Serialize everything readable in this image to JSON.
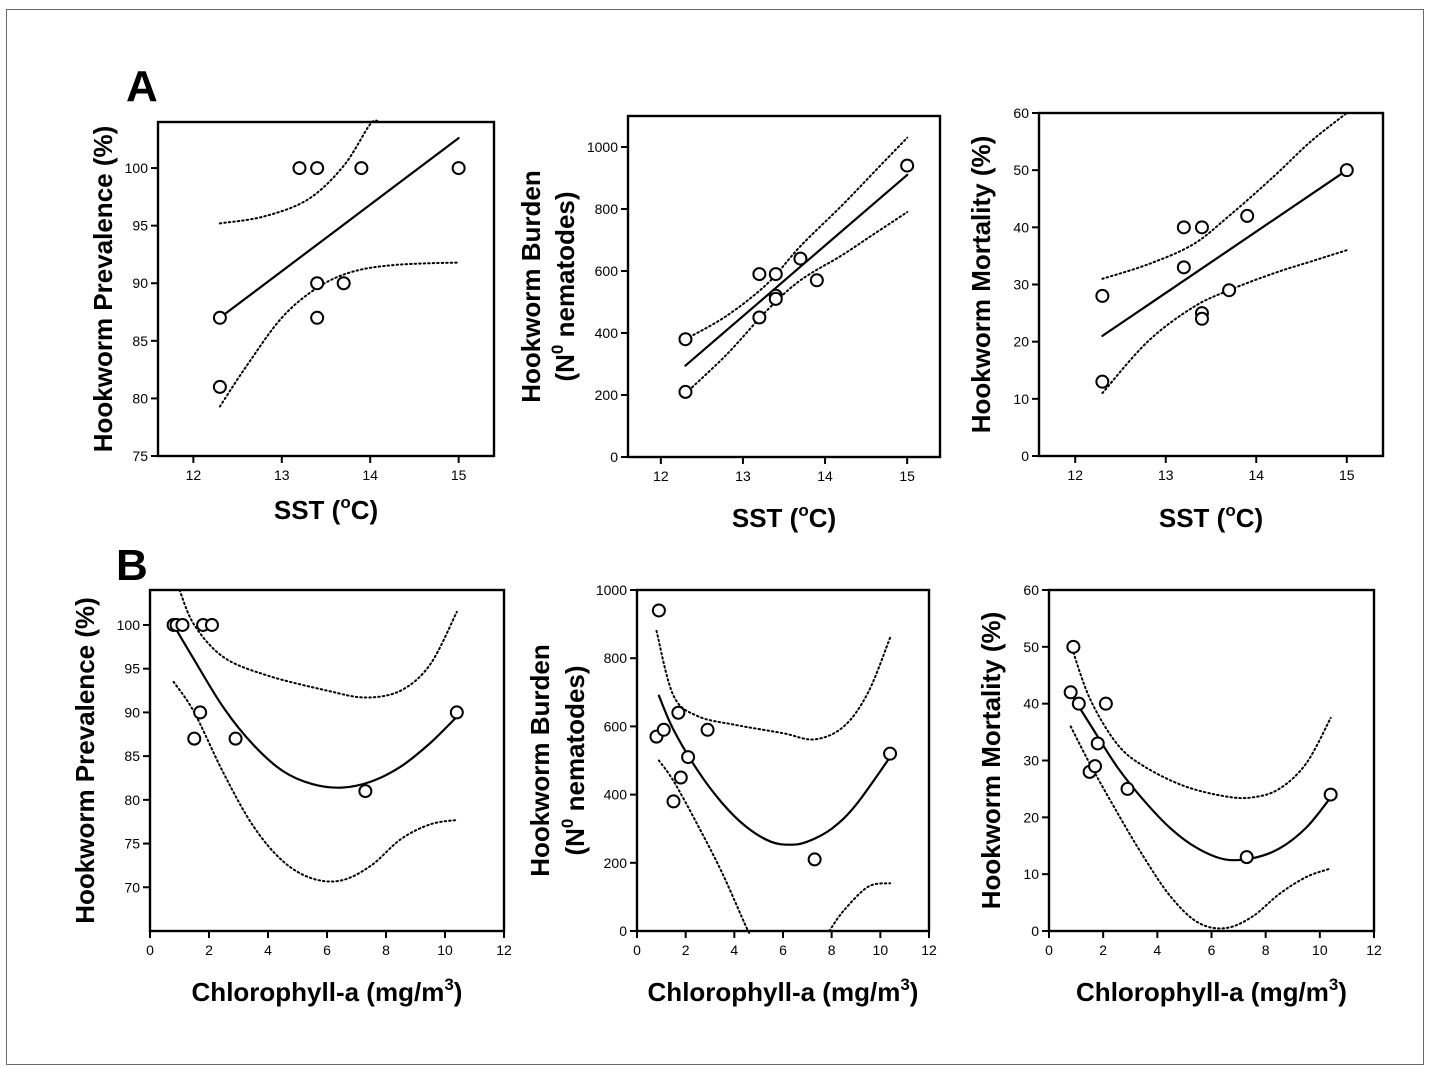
{
  "panel_labels": {
    "a": "A",
    "b": "B"
  },
  "colors": {
    "ink": "#000000",
    "background": "#ffffff"
  },
  "chart_data": [
    {
      "id": "a1",
      "type": "scatter",
      "xlabel": "SST (°C)",
      "xlabel_main": "SST (",
      "xlabel_sup": "o",
      "xlabel_end": "C)",
      "ylabel": "Hookworm Prevalence (%)",
      "xlim": [
        11.6,
        15.4
      ],
      "ylim": [
        75,
        104
      ],
      "xticks": [
        12,
        13,
        14,
        15
      ],
      "yticks": [
        75,
        80,
        85,
        90,
        95,
        100
      ],
      "points": [
        [
          12.3,
          87
        ],
        [
          12.3,
          81
        ],
        [
          13.2,
          100
        ],
        [
          13.4,
          100
        ],
        [
          13.4,
          90
        ],
        [
          13.4,
          87
        ],
        [
          13.7,
          90
        ],
        [
          13.9,
          100
        ],
        [
          15.0,
          100
        ]
      ],
      "fit": {
        "kind": "linear",
        "points": [
          [
            12.3,
            87
          ],
          [
            15.0,
            102.6
          ]
        ]
      },
      "ci_upper": [
        [
          12.3,
          95.2
        ],
        [
          12.8,
          95.8
        ],
        [
          13.3,
          97.3
        ],
        [
          13.7,
          100.2
        ],
        [
          14.0,
          103.8
        ],
        [
          14.1,
          104.0
        ]
      ],
      "ci_lower": [
        [
          12.3,
          79.3
        ],
        [
          12.6,
          82.8
        ],
        [
          13.0,
          87.0
        ],
        [
          13.4,
          89.6
        ],
        [
          13.8,
          91.0
        ],
        [
          14.3,
          91.6
        ],
        [
          15.0,
          91.8
        ]
      ]
    },
    {
      "id": "a2",
      "type": "scatter",
      "xlabel": "SST (°C)",
      "xlabel_main": "SST (",
      "xlabel_sup": "o",
      "xlabel_end": "C)",
      "ylabel": "Hookworm Burden (N0 nematodes)",
      "ylabel_line1": "Hookworm Burden",
      "ylabel_line2_main": "(N",
      "ylabel_line2_sup": "0",
      "ylabel_line2_end": " nematodes)",
      "xlim": [
        11.6,
        15.4
      ],
      "ylim": [
        0,
        1100
      ],
      "xticks": [
        12,
        13,
        14,
        15
      ],
      "yticks": [
        0,
        200,
        400,
        600,
        800,
        1000
      ],
      "points": [
        [
          12.3,
          380
        ],
        [
          12.3,
          210
        ],
        [
          13.2,
          590
        ],
        [
          13.2,
          450
        ],
        [
          13.4,
          590
        ],
        [
          13.4,
          520
        ],
        [
          13.4,
          510
        ],
        [
          13.7,
          640
        ],
        [
          13.9,
          570
        ],
        [
          15.0,
          940
        ]
      ],
      "fit": {
        "kind": "linear",
        "points": [
          [
            12.3,
            295
          ],
          [
            15.0,
            910
          ]
        ]
      },
      "ci_upper": [
        [
          12.3,
          380
        ],
        [
          12.8,
          455
        ],
        [
          13.3,
          560
        ],
        [
          13.7,
          680
        ],
        [
          14.2,
          810
        ],
        [
          14.6,
          920
        ],
        [
          15.0,
          1030
        ]
      ],
      "ci_lower": [
        [
          12.3,
          205
        ],
        [
          12.8,
          330
        ],
        [
          13.3,
          475
        ],
        [
          13.7,
          570
        ],
        [
          14.2,
          650
        ],
        [
          14.6,
          720
        ],
        [
          15.0,
          790
        ]
      ]
    },
    {
      "id": "a3",
      "type": "scatter",
      "xlabel": "SST (°C)",
      "xlabel_main": "SST (",
      "xlabel_sup": "o",
      "xlabel_end": "C)",
      "ylabel": "Hookworm Mortality (%)",
      "xlim": [
        11.6,
        15.4
      ],
      "ylim": [
        0,
        60
      ],
      "xticks": [
        12,
        13,
        14,
        15
      ],
      "yticks": [
        0,
        10,
        20,
        30,
        40,
        50,
        60
      ],
      "points": [
        [
          12.3,
          28
        ],
        [
          12.3,
          13
        ],
        [
          13.2,
          40
        ],
        [
          13.2,
          33
        ],
        [
          13.4,
          40
        ],
        [
          13.4,
          25
        ],
        [
          13.4,
          24
        ],
        [
          13.7,
          29
        ],
        [
          13.9,
          42
        ],
        [
          15.0,
          50
        ]
      ],
      "fit": {
        "kind": "linear",
        "points": [
          [
            12.3,
            21
          ],
          [
            15.0,
            50
          ]
        ]
      },
      "ci_upper": [
        [
          12.3,
          31
        ],
        [
          12.8,
          33.5
        ],
        [
          13.3,
          37
        ],
        [
          13.7,
          42
        ],
        [
          14.2,
          49
        ],
        [
          14.6,
          55
        ],
        [
          15.0,
          60.5
        ]
      ],
      "ci_lower": [
        [
          12.3,
          11
        ],
        [
          12.8,
          20
        ],
        [
          13.3,
          26
        ],
        [
          13.7,
          29
        ],
        [
          14.2,
          32
        ],
        [
          14.6,
          34
        ],
        [
          15.0,
          36
        ]
      ]
    },
    {
      "id": "b1",
      "type": "scatter",
      "xlabel": "Chlorophyll-a (mg/m3)",
      "xlabel_main": "Chlorophyll-a (mg/m",
      "xlabel_sup": "3",
      "xlabel_end": ")",
      "ylabel": "Hookworm Prevalence (%)",
      "xlim": [
        0,
        12
      ],
      "ylim": [
        65,
        104
      ],
      "xticks": [
        0,
        2,
        4,
        6,
        8,
        10,
        12
      ],
      "yticks": [
        70,
        75,
        80,
        85,
        90,
        95,
        100
      ],
      "points": [
        [
          0.8,
          100
        ],
        [
          0.9,
          100
        ],
        [
          1.1,
          100
        ],
        [
          1.5,
          87
        ],
        [
          1.7,
          90
        ],
        [
          1.8,
          100
        ],
        [
          2.1,
          100
        ],
        [
          2.9,
          87
        ],
        [
          7.3,
          81
        ],
        [
          10.4,
          90
        ]
      ],
      "fit": {
        "kind": "quadratic",
        "points": [
          [
            0.8,
            100
          ],
          [
            1.5,
            96
          ],
          [
            2.5,
            90.5
          ],
          [
            3.5,
            86.3
          ],
          [
            4.5,
            83.3
          ],
          [
            5.5,
            81.8
          ],
          [
            6.5,
            81.4
          ],
          [
            7.5,
            82.1
          ],
          [
            8.5,
            83.8
          ],
          [
            9.5,
            86.5
          ],
          [
            10.4,
            89.5
          ]
        ]
      },
      "ci_upper": [
        [
          1.0,
          105
        ],
        [
          1.5,
          100
        ],
        [
          2.5,
          96.3
        ],
        [
          4.0,
          94.2
        ],
        [
          6.0,
          92.5
        ],
        [
          7.3,
          91.7
        ],
        [
          8.5,
          92.5
        ],
        [
          9.5,
          95.5
        ],
        [
          10.4,
          101.5
        ]
      ],
      "ci_lower": [
        [
          0.8,
          93.5
        ],
        [
          1.5,
          90
        ],
        [
          2.5,
          83
        ],
        [
          3.5,
          77
        ],
        [
          4.5,
          73
        ],
        [
          5.5,
          71
        ],
        [
          6.5,
          70.8
        ],
        [
          7.5,
          72.5
        ],
        [
          8.5,
          75.5
        ],
        [
          9.5,
          77.2
        ],
        [
          10.4,
          77.7
        ]
      ]
    },
    {
      "id": "b2",
      "type": "scatter",
      "xlabel": "Chlorophyll-a (mg/m3)",
      "xlabel_main": "Chlorophyll-a (mg/m",
      "xlabel_sup": "3",
      "xlabel_end": ")",
      "ylabel": "Hookworm Burden (N0 nematodes)",
      "ylabel_line1": "Hookworm Burden",
      "ylabel_line2_main": "(N",
      "ylabel_line2_sup": "0",
      "ylabel_line2_end": " nematodes)",
      "xlim": [
        0,
        12
      ],
      "ylim": [
        0,
        1000
      ],
      "xticks": [
        0,
        2,
        4,
        6,
        8,
        10,
        12
      ],
      "yticks": [
        0,
        200,
        400,
        600,
        800,
        1000
      ],
      "points": [
        [
          0.8,
          570
        ],
        [
          0.9,
          940
        ],
        [
          1.1,
          590
        ],
        [
          1.5,
          380
        ],
        [
          1.7,
          640
        ],
        [
          1.8,
          450
        ],
        [
          2.1,
          510
        ],
        [
          2.9,
          590
        ],
        [
          7.3,
          210
        ],
        [
          10.4,
          520
        ]
      ],
      "fit": {
        "kind": "quadratic",
        "points": [
          [
            0.9,
            690
          ],
          [
            1.5,
            590
          ],
          [
            2.5,
            470
          ],
          [
            3.5,
            375
          ],
          [
            4.5,
            305
          ],
          [
            5.5,
            262
          ],
          [
            6.3,
            253
          ],
          [
            7.0,
            262
          ],
          [
            8.0,
            300
          ],
          [
            9.0,
            370
          ],
          [
            10.4,
            510
          ]
        ]
      },
      "ci_upper": [
        [
          0.8,
          880
        ],
        [
          1.5,
          690
        ],
        [
          2.5,
          630
        ],
        [
          4.0,
          605
        ],
        [
          6.0,
          580
        ],
        [
          7.3,
          562
        ],
        [
          8.5,
          600
        ],
        [
          9.5,
          700
        ],
        [
          10.4,
          860
        ]
      ],
      "ci_lower": [
        [
          0.9,
          500
        ],
        [
          1.5,
          440
        ],
        [
          2.5,
          310
        ],
        [
          3.5,
          170
        ],
        [
          4.5,
          10
        ],
        [
          4.6,
          0
        ]
      ],
      "ci_lower_right": [
        [
          7.9,
          0
        ],
        [
          8.5,
          60
        ],
        [
          9.5,
          130
        ],
        [
          10.4,
          140
        ]
      ]
    },
    {
      "id": "b3",
      "type": "scatter",
      "xlabel": "Chlorophyll-a (mg/m3)",
      "xlabel_main": "Chlorophyll-a (mg/m",
      "xlabel_sup": "3",
      "xlabel_end": ")",
      "ylabel": "Hookworm Mortality (%)",
      "xlim": [
        0,
        12
      ],
      "ylim": [
        0,
        60
      ],
      "xticks": [
        0,
        2,
        4,
        6,
        8,
        10,
        12
      ],
      "yticks": [
        0,
        10,
        20,
        30,
        40,
        50,
        60
      ],
      "points": [
        [
          0.8,
          42
        ],
        [
          0.9,
          50
        ],
        [
          1.1,
          40
        ],
        [
          1.5,
          28
        ],
        [
          1.7,
          29
        ],
        [
          1.8,
          33
        ],
        [
          2.1,
          40
        ],
        [
          2.9,
          25
        ],
        [
          7.3,
          13
        ],
        [
          10.4,
          24
        ]
      ],
      "fit": {
        "kind": "quadratic",
        "points": [
          [
            0.9,
            41
          ],
          [
            1.5,
            36.5
          ],
          [
            2.5,
            29
          ],
          [
            3.5,
            23
          ],
          [
            4.5,
            18
          ],
          [
            5.5,
            14.5
          ],
          [
            6.5,
            12.6
          ],
          [
            7.5,
            12.8
          ],
          [
            8.5,
            14.5
          ],
          [
            9.5,
            18.2
          ],
          [
            10.4,
            23.5
          ]
        ]
      },
      "ci_upper": [
        [
          0.8,
          50.5
        ],
        [
          1.5,
          41
        ],
        [
          2.5,
          33
        ],
        [
          3.5,
          29
        ],
        [
          5.0,
          25.5
        ],
        [
          6.5,
          23.7
        ],
        [
          7.5,
          23.5
        ],
        [
          8.5,
          25
        ],
        [
          9.5,
          29.5
        ],
        [
          10.4,
          37.5
        ]
      ],
      "ci_lower": [
        [
          0.8,
          36
        ],
        [
          1.5,
          29.5
        ],
        [
          2.5,
          21
        ],
        [
          3.5,
          13
        ],
        [
          4.5,
          6
        ],
        [
          5.5,
          1.5
        ],
        [
          6.5,
          0.5
        ],
        [
          7.5,
          2.5
        ],
        [
          8.5,
          6.5
        ],
        [
          9.5,
          9.5
        ],
        [
          10.4,
          11
        ]
      ]
    }
  ]
}
